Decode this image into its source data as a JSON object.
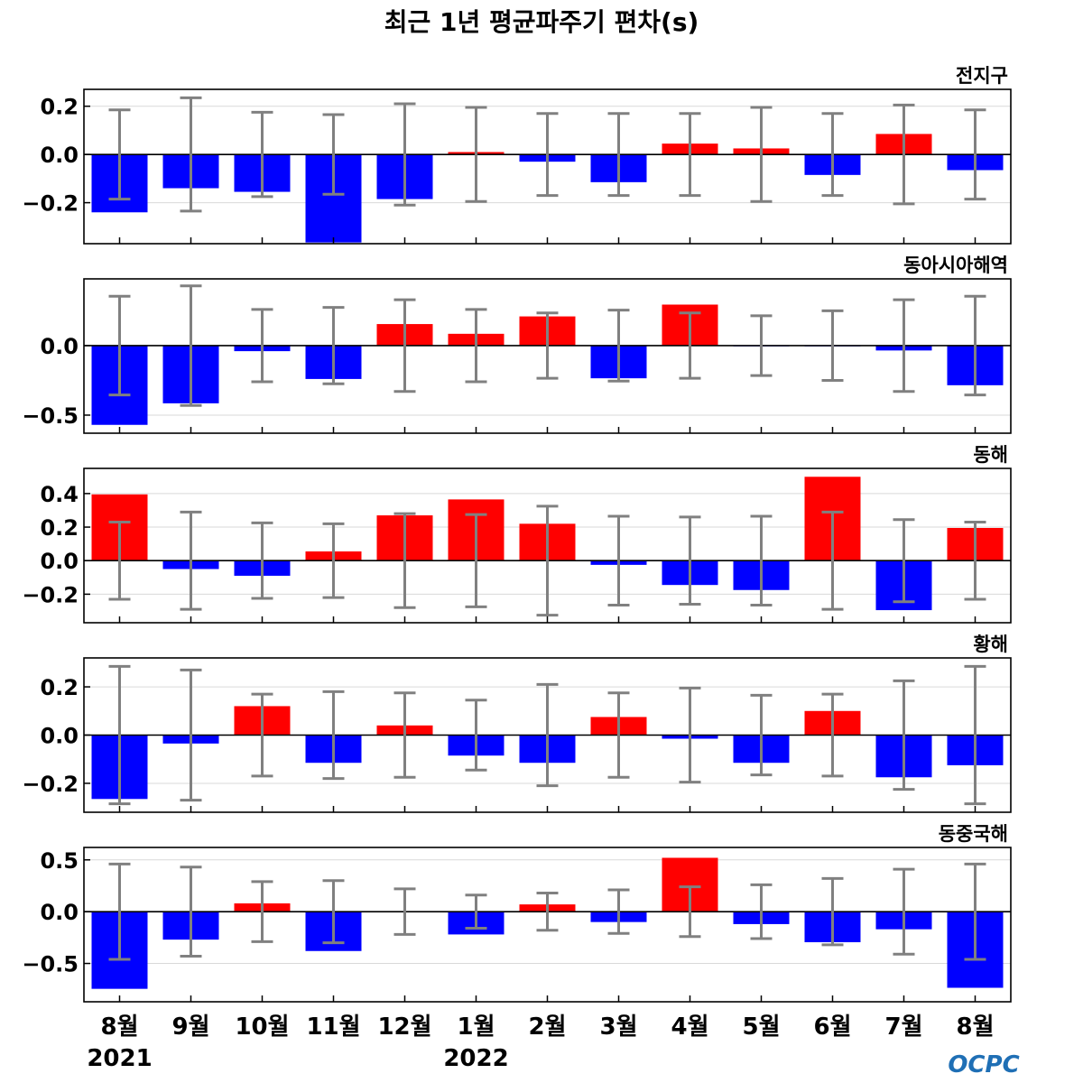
{
  "title": "최근 1년 평균파주기 편차(s)",
  "colors": {
    "positive": "#ff0000",
    "negative": "#0000ff",
    "errorbar": "#808080",
    "zero_line": "#000000",
    "grid": "#d9d9d9",
    "logo": "#1f6fb5"
  },
  "x_tick_labels": [
    "8월",
    "9월",
    "10월",
    "11월",
    "12월",
    "1월",
    "2월",
    "3월",
    "4월",
    "5월",
    "6월",
    "7월",
    "8월"
  ],
  "year_labels": [
    {
      "text": "2021",
      "index": 0
    },
    {
      "text": "2022",
      "index": 5
    }
  ],
  "logo": {
    "text": "OCPC"
  },
  "chart_data": [
    {
      "type": "bar",
      "label": "전지구",
      "ylim": [
        -0.37,
        0.27
      ],
      "yticks": [
        0.2,
        0.0,
        -0.2
      ],
      "ytick_labels": [
        "0.2",
        "0.0",
        "−0.2"
      ],
      "grid": true,
      "values": [
        -0.24,
        -0.14,
        -0.155,
        -0.365,
        -0.185,
        0.01,
        -0.03,
        -0.115,
        0.045,
        0.025,
        -0.085,
        0.085,
        -0.065
      ],
      "error": [
        0.185,
        0.235,
        0.175,
        0.165,
        0.21,
        0.195,
        0.17,
        0.17,
        0.17,
        0.195,
        0.17,
        0.205,
        0.185
      ]
    },
    {
      "type": "bar",
      "label": "동아시아해역",
      "ylim": [
        -0.63,
        0.48
      ],
      "yticks": [
        0.0,
        -0.5
      ],
      "ytick_labels": [
        "0.0",
        "−0.5"
      ],
      "grid": true,
      "values": [
        -0.57,
        -0.415,
        -0.04,
        -0.24,
        0.155,
        0.085,
        0.21,
        -0.235,
        0.295,
        -0.005,
        -0.005,
        -0.035,
        -0.285
      ],
      "error": [
        0.355,
        0.43,
        0.26,
        0.275,
        0.33,
        0.26,
        0.235,
        0.255,
        0.235,
        0.215,
        0.25,
        0.33,
        0.355
      ]
    },
    {
      "type": "bar",
      "label": "동해",
      "ylim": [
        -0.37,
        0.55
      ],
      "yticks": [
        0.4,
        0.2,
        0.0,
        -0.2
      ],
      "ytick_labels": [
        "0.4",
        "0.2",
        "0.0",
        "−0.2"
      ],
      "grid": true,
      "values": [
        0.395,
        -0.05,
        -0.09,
        0.055,
        0.27,
        0.365,
        0.22,
        -0.025,
        -0.145,
        -0.175,
        0.5,
        -0.295,
        0.195
      ],
      "error": [
        0.23,
        0.29,
        0.225,
        0.22,
        0.28,
        0.275,
        0.325,
        0.265,
        0.26,
        0.265,
        0.29,
        0.245,
        0.23
      ]
    },
    {
      "type": "bar",
      "label": "황해",
      "ylim": [
        -0.32,
        0.32
      ],
      "yticks": [
        0.2,
        0.0,
        -0.2
      ],
      "ytick_labels": [
        "0.2",
        "0.0",
        "−0.2"
      ],
      "grid": true,
      "values": [
        -0.265,
        -0.035,
        0.12,
        -0.115,
        0.04,
        -0.085,
        -0.115,
        0.075,
        -0.015,
        -0.115,
        0.1,
        -0.175,
        -0.125
      ],
      "error": [
        0.285,
        0.27,
        0.17,
        0.18,
        0.175,
        0.145,
        0.21,
        0.175,
        0.195,
        0.165,
        0.17,
        0.225,
        0.285
      ]
    },
    {
      "type": "bar",
      "label": "동중국해",
      "ylim": [
        -0.87,
        0.62
      ],
      "yticks": [
        0.5,
        0.0,
        -0.5
      ],
      "ytick_labels": [
        "0.5",
        "0.0",
        "−0.5"
      ],
      "grid": true,
      "values": [
        -0.745,
        -0.27,
        0.08,
        -0.38,
        0.0,
        -0.22,
        0.07,
        -0.1,
        0.52,
        -0.12,
        -0.295,
        -0.17,
        -0.735
      ],
      "error": [
        0.46,
        0.43,
        0.29,
        0.3,
        0.22,
        0.16,
        0.18,
        0.21,
        0.24,
        0.26,
        0.32,
        0.41,
        0.46
      ]
    }
  ]
}
